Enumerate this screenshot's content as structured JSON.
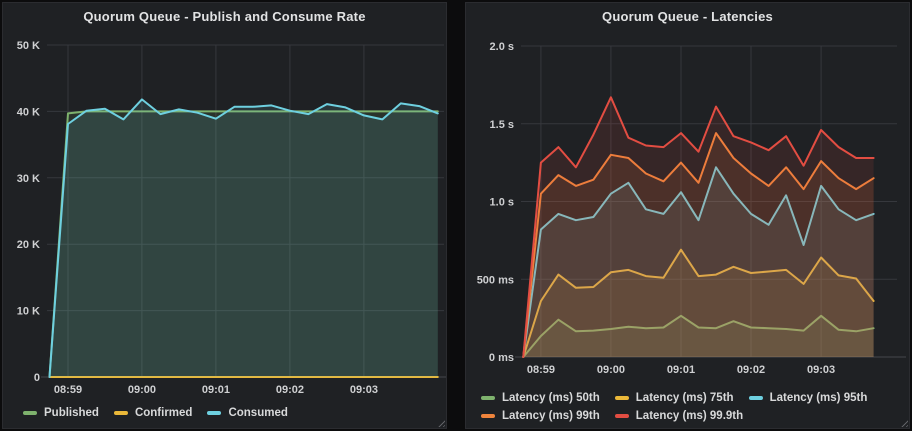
{
  "theme": {
    "page_background": "#0c0c0d",
    "panel_background": "#1f2124",
    "grid_color": "#36383d",
    "text_color": "#d8d9da"
  },
  "chart_data": [
    {
      "type": "line",
      "title": "Quorum Queue - Publish and Consume Rate",
      "x_start_time": "08:58:45",
      "x_step_seconds": 15,
      "x_axis_range_seconds": [
        -2,
        320
      ],
      "x_tick_labels": [
        "08:59",
        "09:00",
        "09:01",
        "09:02",
        "09:03"
      ],
      "x_tick_offsets_seconds": [
        15,
        75,
        135,
        195,
        255
      ],
      "ylim": [
        0,
        50000
      ],
      "y_tick_values": [
        0,
        10000,
        20000,
        30000,
        40000,
        50000
      ],
      "y_tick_labels": [
        "0",
        "10 K",
        "20 K",
        "30 K",
        "40 K",
        "50 K"
      ],
      "grid": true,
      "legend_position": "bottom",
      "fill_opacity": 0.12,
      "series": [
        {
          "name": "Published",
          "color": "#7EB26D",
          "values": [
            0,
            39700,
            40000,
            40000,
            40000,
            40000,
            40000,
            40000,
            40000,
            40000,
            40000,
            40000,
            40000,
            40000,
            40000,
            40000,
            40000,
            40000,
            40000,
            40000,
            40000,
            40000
          ]
        },
        {
          "name": "Confirmed",
          "color": "#EAB839",
          "values": [
            0,
            0,
            0,
            0,
            0,
            0,
            0,
            0,
            0,
            0,
            0,
            0,
            0,
            0,
            0,
            0,
            0,
            0,
            0,
            0,
            0,
            0
          ]
        },
        {
          "name": "Consumed",
          "color": "#6ED0E0",
          "values": [
            0,
            38100,
            40100,
            40400,
            38800,
            41800,
            39600,
            40300,
            39800,
            38900,
            40700,
            40700,
            40900,
            40100,
            39600,
            41100,
            40600,
            39400,
            38800,
            41200,
            40800,
            39700
          ]
        }
      ]
    },
    {
      "type": "line",
      "title": "Quorum Queue - Latencies",
      "x_start_time": "08:58:45",
      "x_step_seconds": 15,
      "x_axis_range_seconds": [
        -2,
        320
      ],
      "x_tick_labels": [
        "08:59",
        "09:00",
        "09:01",
        "09:02",
        "09:03"
      ],
      "x_tick_offsets_seconds": [
        15,
        75,
        135,
        195,
        255
      ],
      "ylim": [
        0,
        2000
      ],
      "y_tick_values": [
        0,
        500,
        1000,
        1500,
        2000
      ],
      "y_tick_labels": [
        "0 ms",
        "500 ms",
        "1.0 s",
        "1.5 s",
        "2.0 s"
      ],
      "grid": true,
      "legend_position": "bottom",
      "fill_opacity": 0.12,
      "series": [
        {
          "name": "Latency (ms) 50th",
          "color": "#7EB26D",
          "values": [
            0,
            135,
            240,
            165,
            170,
            180,
            195,
            185,
            190,
            265,
            190,
            185,
            230,
            190,
            185,
            180,
            170,
            265,
            175,
            165,
            185
          ]
        },
        {
          "name": "Latency (ms) 75th",
          "color": "#EAB839",
          "values": [
            0,
            360,
            530,
            445,
            450,
            545,
            560,
            520,
            510,
            690,
            520,
            530,
            580,
            540,
            550,
            560,
            470,
            640,
            525,
            505,
            360
          ]
        },
        {
          "name": "Latency (ms) 95th",
          "color": "#6ED0E0",
          "values": [
            0,
            820,
            920,
            880,
            900,
            1050,
            1120,
            950,
            920,
            1060,
            880,
            1220,
            1050,
            920,
            850,
            1040,
            720,
            1100,
            950,
            880,
            920
          ]
        },
        {
          "name": "Latency (ms) 99th",
          "color": "#EF843C",
          "values": [
            0,
            1050,
            1170,
            1100,
            1140,
            1300,
            1280,
            1180,
            1130,
            1250,
            1120,
            1440,
            1280,
            1180,
            1100,
            1220,
            1080,
            1260,
            1150,
            1080,
            1150
          ]
        },
        {
          "name": "Latency (ms) 99.9th",
          "color": "#E24D42",
          "values": [
            0,
            1250,
            1350,
            1220,
            1430,
            1670,
            1410,
            1360,
            1350,
            1440,
            1320,
            1610,
            1420,
            1380,
            1330,
            1420,
            1230,
            1460,
            1350,
            1280,
            1280
          ]
        }
      ]
    }
  ]
}
